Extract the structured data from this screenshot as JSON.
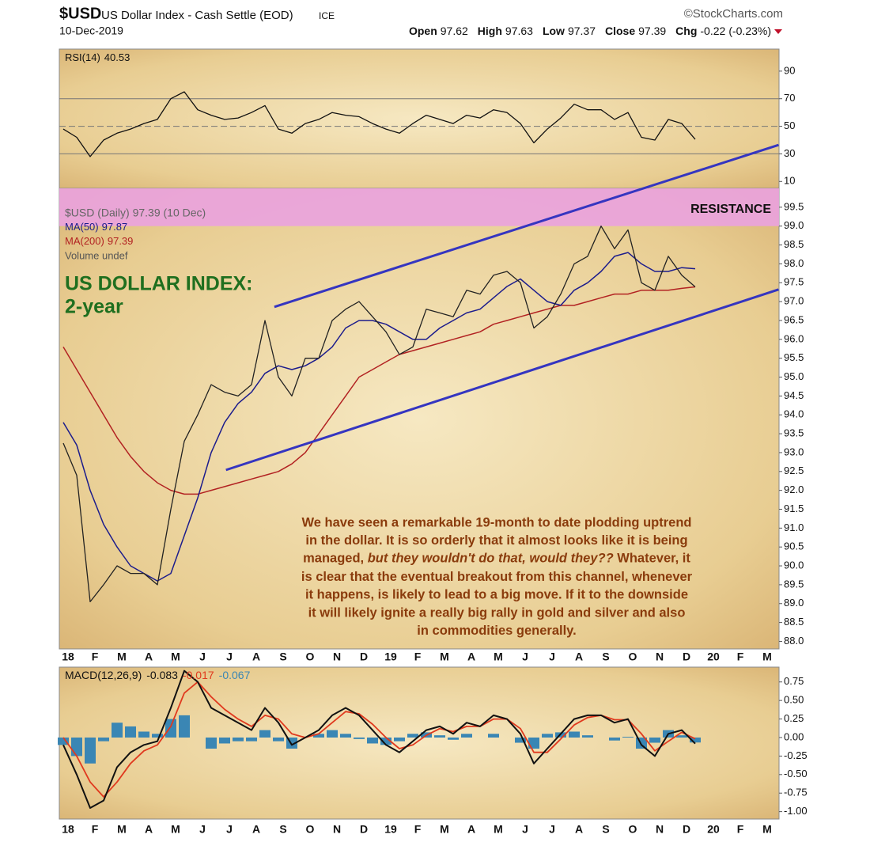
{
  "header": {
    "symbol": "$USD",
    "name": "US Dollar Index - Cash Settle (EOD)",
    "exchange": "ICE",
    "source": "©StockCharts.com",
    "date": "10-Dec-2019",
    "quote": [
      {
        "label": "Open",
        "value": 97.62
      },
      {
        "label": "High",
        "value": 97.63
      },
      {
        "label": "Low",
        "value": 97.37
      },
      {
        "label": "Close",
        "value": 97.39
      },
      {
        "label": "Chg",
        "value": -0.22
      }
    ],
    "chg_pct": "(-0.23%)"
  },
  "chart_data": [
    {
      "type": "line",
      "ylim": [
        5,
        106
      ],
      "yticks": [
        10,
        30,
        50,
        70,
        90
      ],
      "grid_lines": [
        30,
        50,
        70
      ],
      "series": [
        {
          "name": "RSI(14)",
          "color": "#111111",
          "values": [
            48,
            42,
            28,
            40,
            45,
            48,
            52,
            55,
            70,
            75,
            62,
            58,
            55,
            56,
            60,
            65,
            48,
            45,
            52,
            55,
            60,
            58,
            57,
            52,
            48,
            45,
            52,
            58,
            55,
            52,
            58,
            56,
            62,
            60,
            52,
            38,
            48,
            56,
            66,
            62,
            62,
            55,
            60,
            42,
            40,
            55,
            52,
            40.53,
            null,
            null,
            null,
            null,
            null,
            null
          ]
        }
      ]
    },
    {
      "type": "line",
      "ylim": [
        87.8,
        100
      ],
      "categories": [
        "18",
        null,
        "F",
        null,
        "M",
        null,
        "A",
        null,
        "M",
        null,
        "J",
        null,
        "J",
        null,
        "A",
        null,
        "S",
        null,
        "O",
        null,
        "N",
        null,
        "D",
        null,
        "19",
        null,
        "F",
        null,
        "M",
        null,
        "A",
        null,
        "M",
        null,
        "J",
        null,
        "J",
        null,
        "A",
        null,
        "S",
        null,
        "O",
        null,
        "N",
        null,
        "D",
        null,
        "20",
        null,
        "F",
        null,
        "M",
        null
      ],
      "yticks": [
        {
          "value": 88,
          "label": "88.0"
        },
        88.5,
        {
          "value": 89,
          "label": "89.0"
        },
        89.5,
        {
          "value": 90,
          "label": "90.0"
        },
        90.5,
        {
          "value": 91,
          "label": "91.0"
        },
        91.5,
        {
          "value": 92,
          "label": "92.0"
        },
        92.5,
        {
          "value": 93,
          "label": "93.0"
        },
        93.5,
        {
          "value": 94,
          "label": "94.0"
        },
        94.5,
        {
          "value": 95,
          "label": "95.0"
        },
        95.5,
        {
          "value": 96,
          "label": "96.0"
        },
        96.5,
        {
          "value": 97,
          "label": "97.0"
        },
        97.5,
        {
          "value": 98,
          "label": "98.0"
        },
        98.5,
        {
          "value": 99,
          "label": "99.0"
        },
        99.5
      ],
      "series": [
        {
          "name": "$USD (Daily) 97.39 (10 Dec)",
          "color": "#222222",
          "values": [
            93.25,
            92.4,
            89.05,
            89.5,
            90.0,
            89.8,
            89.8,
            89.5,
            91.5,
            93.3,
            94.0,
            94.8,
            94.6,
            94.5,
            94.8,
            96.5,
            95.0,
            94.5,
            95.5,
            95.5,
            96.5,
            96.8,
            97.0,
            96.6,
            96.2,
            95.6,
            95.8,
            96.8,
            96.7,
            96.6,
            97.3,
            97.2,
            97.7,
            97.8,
            97.5,
            96.3,
            96.6,
            97.2,
            98.0,
            98.2,
            99.0,
            98.4,
            98.9,
            97.5,
            97.3,
            98.2,
            97.7,
            97.39,
            null,
            null,
            null,
            null,
            null,
            null
          ]
        },
        {
          "name": "MA(50)",
          "color": "#1c1c8c",
          "values": [
            93.8,
            93.2,
            92.0,
            91.1,
            90.5,
            90.0,
            89.8,
            89.6,
            89.8,
            90.8,
            91.8,
            93.0,
            93.8,
            94.3,
            94.6,
            95.1,
            95.3,
            95.2,
            95.3,
            95.5,
            95.8,
            96.3,
            96.5,
            96.5,
            96.4,
            96.2,
            96.0,
            96.0,
            96.3,
            96.5,
            96.7,
            96.8,
            97.1,
            97.4,
            97.6,
            97.3,
            97.0,
            96.9,
            97.3,
            97.5,
            97.8,
            98.2,
            98.3,
            98.0,
            97.8,
            97.8,
            97.9,
            97.87,
            null,
            null,
            null,
            null,
            null,
            null
          ]
        },
        {
          "name": "MA(200)",
          "color": "#b22222",
          "values": [
            95.8,
            95.2,
            94.6,
            94.0,
            93.4,
            92.9,
            92.5,
            92.2,
            92.0,
            91.9,
            91.9,
            92.0,
            92.1,
            92.2,
            92.3,
            92.4,
            92.5,
            92.7,
            93.0,
            93.5,
            94.0,
            94.5,
            95.0,
            95.2,
            95.4,
            95.6,
            95.7,
            95.8,
            95.9,
            96.0,
            96.1,
            96.2,
            96.4,
            96.5,
            96.6,
            96.7,
            96.8,
            96.9,
            96.9,
            97.0,
            97.1,
            97.2,
            97.2,
            97.3,
            97.3,
            97.3,
            97.35,
            97.39,
            null,
            null,
            null,
            null,
            null,
            null
          ]
        }
      ],
      "volume_label": "Volume undef",
      "resistance": {
        "range": [
          99.0,
          100
        ],
        "label": "RESISTANCE",
        "color": "#eaa2df"
      },
      "channel": {
        "color": "#3535c0",
        "lines": [
          {
            "x": [
              15.7,
              53.2
            ],
            "y": [
              96.86,
              101.15
            ]
          },
          {
            "x": [
              12.1,
              53.2
            ],
            "y": [
              92.54,
              97.32
            ]
          }
        ]
      },
      "annotation_title": [
        "US DOLLAR INDEX:",
        "2-year"
      ],
      "note_lines": [
        "We have seen a remarkable 19-month to date plodding uptrend",
        "in the dollar. It is so orderly that it almost looks like it is being",
        [
          "managed, ",
          "but they wouldn't do that, would they??",
          " Whatever, it"
        ],
        "is clear that the eventual breakout from this channel, whenever",
        "it happens, is likely to lead to a big move. If it to the downside",
        "it will likely ignite a really big rally in gold and silver and also",
        "in commodities generally."
      ]
    },
    {
      "type": "line",
      "ylim": [
        -1.1,
        0.95
      ],
      "categories": [
        "18",
        null,
        "F",
        null,
        "M",
        null,
        "A",
        null,
        "M",
        null,
        "J",
        null,
        "J",
        null,
        "A",
        null,
        "S",
        null,
        "O",
        null,
        "N",
        null,
        "D",
        null,
        "19",
        null,
        "F",
        null,
        "M",
        null,
        "A",
        null,
        "M",
        null,
        "J",
        null,
        "J",
        null,
        "A",
        null,
        "S",
        null,
        "O",
        null,
        "N",
        null,
        "D",
        null,
        "20",
        null,
        "F",
        null,
        "M",
        null
      ],
      "yticks": [
        0.75,
        {
          "value": 0.5,
          "label": "0.50"
        },
        0.25,
        {
          "value": 0,
          "label": "0.00"
        },
        -0.25,
        {
          "value": -0.5,
          "label": "-0.50"
        },
        -0.75,
        {
          "value": -1,
          "label": "-1.00"
        }
      ],
      "legend_title": "MACD(12,26,9)",
      "series": [
        {
          "name": "MACD",
          "color": "#111111",
          "values": [
            -0.1,
            -0.5,
            -0.95,
            -0.85,
            -0.4,
            -0.2,
            -0.1,
            -0.05,
            0.4,
            0.9,
            0.75,
            0.4,
            0.3,
            0.2,
            0.1,
            0.4,
            0.2,
            -0.1,
            0.0,
            0.1,
            0.3,
            0.4,
            0.3,
            0.1,
            -0.1,
            -0.2,
            -0.05,
            0.1,
            0.15,
            0.05,
            0.2,
            0.15,
            0.3,
            0.25,
            0.05,
            -0.35,
            -0.15,
            0.05,
            0.25,
            0.3,
            0.3,
            0.2,
            0.25,
            -0.1,
            -0.25,
            0.05,
            0.1,
            -0.083,
            null,
            null,
            null,
            null,
            null,
            null
          ]
        },
        {
          "name": "Signal",
          "color": "#e0391e",
          "values": [
            0.0,
            -0.25,
            -0.6,
            -0.8,
            -0.6,
            -0.35,
            -0.18,
            -0.1,
            0.15,
            0.6,
            0.75,
            0.55,
            0.38,
            0.25,
            0.15,
            0.3,
            0.25,
            0.05,
            0.0,
            0.05,
            0.2,
            0.35,
            0.32,
            0.18,
            0.0,
            -0.15,
            -0.1,
            0.03,
            0.12,
            0.08,
            0.15,
            0.15,
            0.25,
            0.25,
            0.12,
            -0.2,
            -0.2,
            -0.02,
            0.17,
            0.27,
            0.3,
            0.24,
            0.24,
            0.05,
            -0.18,
            -0.05,
            0.07,
            -0.017,
            null,
            null,
            null,
            null,
            null,
            null
          ]
        },
        {
          "name": "Histogram",
          "color": "#3a86b4",
          "values": [
            -0.1,
            -0.25,
            -0.35,
            -0.05,
            0.2,
            0.15,
            0.08,
            0.05,
            0.25,
            0.3,
            0.0,
            -0.15,
            -0.08,
            -0.05,
            -0.05,
            0.1,
            -0.05,
            -0.15,
            0.0,
            0.05,
            0.1,
            0.05,
            -0.02,
            -0.08,
            -0.1,
            -0.05,
            0.05,
            0.07,
            0.03,
            -0.03,
            0.05,
            0.0,
            0.05,
            0.0,
            -0.07,
            -0.15,
            0.05,
            0.07,
            0.08,
            0.03,
            0.0,
            -0.04,
            0.01,
            -0.15,
            -0.07,
            0.1,
            0.03,
            -0.067,
            null,
            null,
            null,
            null,
            null,
            null
          ]
        }
      ]
    }
  ]
}
